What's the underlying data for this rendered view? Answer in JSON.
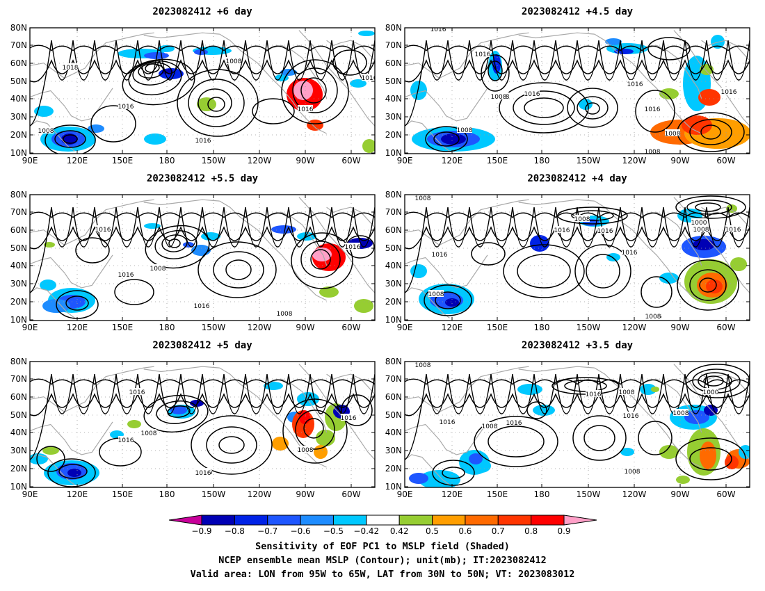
{
  "figure": {
    "panels": [
      {
        "title": "2023082412 +6 day",
        "contour_labels": [
          [
            "1008",
            null
          ],
          [
            "1018",
            null
          ],
          [
            "1016",
            null
          ],
          [
            "1016",
            null
          ],
          [
            "1016",
            null
          ],
          [
            "1016",
            null
          ],
          [
            "1008",
            null
          ]
        ]
      },
      {
        "title": "2023082412 +4.5 day",
        "contour_labels": [
          [
            "1008",
            null
          ],
          [
            "1016",
            null
          ],
          [
            "1008",
            null
          ],
          [
            "1016",
            null
          ],
          [
            "1016",
            null
          ],
          [
            "1016",
            null
          ],
          [
            "1016",
            null
          ],
          [
            "1008",
            null
          ],
          [
            "1008",
            null
          ],
          [
            "1016",
            null
          ],
          [
            "1008",
            null
          ]
        ]
      },
      {
        "title": "2023082412 +5.5 day",
        "contour_labels": [
          [
            "1016",
            null
          ],
          [
            "1008",
            null
          ],
          [
            "1016",
            null
          ],
          [
            "1016",
            null
          ],
          [
            "1008",
            null
          ],
          [
            "1016",
            null
          ]
        ]
      },
      {
        "title": "2023082412 +4 day",
        "contour_labels": [
          [
            "1008",
            null
          ],
          [
            "1008",
            null
          ],
          [
            "1016",
            null
          ],
          [
            "1016",
            null
          ],
          [
            "1016",
            null
          ],
          [
            "1016",
            null
          ],
          [
            "1016",
            null
          ],
          [
            "1008",
            null
          ],
          [
            "1000",
            null
          ],
          [
            "1008",
            null
          ],
          [
            "1016",
            null
          ],
          [
            "1008",
            null
          ]
        ]
      },
      {
        "title": "2023082412 +5 day",
        "contour_labels": [
          [
            "1016",
            null
          ],
          [
            "1008",
            null
          ],
          [
            "1016",
            null
          ],
          [
            "1008",
            null
          ],
          [
            "1016",
            null
          ],
          [
            "1016",
            null
          ],
          [
            "1016",
            null
          ]
        ]
      },
      {
        "title": "2023082412 +3.5 day",
        "contour_labels": [
          [
            "1008",
            null
          ],
          [
            "1016",
            null
          ],
          [
            "1008",
            null
          ],
          [
            "1016",
            null
          ],
          [
            "1016",
            null
          ],
          [
            "1008",
            null
          ],
          [
            "1016",
            null
          ],
          [
            "1000",
            null
          ],
          [
            "1008",
            null
          ],
          [
            "1008",
            null
          ]
        ]
      }
    ],
    "lat_ticks": [
      "80N",
      "70N",
      "60N",
      "50N",
      "40N",
      "30N",
      "20N",
      "10N"
    ],
    "lon_ticks": [
      "90E",
      "120E",
      "150E",
      "180",
      "150W",
      "120W",
      "90W",
      "60W"
    ],
    "colorbar": {
      "tick_labels": [
        "−0.9",
        "−0.8",
        "−0.7",
        "−0.6",
        "−0.5",
        "−0.42",
        "0.42",
        "0.5",
        "0.6",
        "0.7",
        "0.8",
        "0.9"
      ],
      "colors": [
        "#c8009a",
        "#0000b4",
        "#0022e6",
        "#1e56ff",
        "#1e8cff",
        "#00c8ff",
        "#ffffff",
        "#96cd32",
        "#ff9e00",
        "#ff6a00",
        "#ff3500",
        "#ff0000",
        "#ffa0c8"
      ]
    },
    "caption": [
      "Sensitivity of EOF PC1 to MSLP field (Shaded)",
      "NCEP ensemble mean MSLP (Contour); unit(mb); IT:2023082412",
      "Valid area: LON from 95W to 65W, LAT from 30N to 50N; VT: 2023083012"
    ],
    "colors": {
      "land_outline": "#a9a9a9",
      "contour": "#000000",
      "grid": "#9a9a9a"
    }
  }
}
